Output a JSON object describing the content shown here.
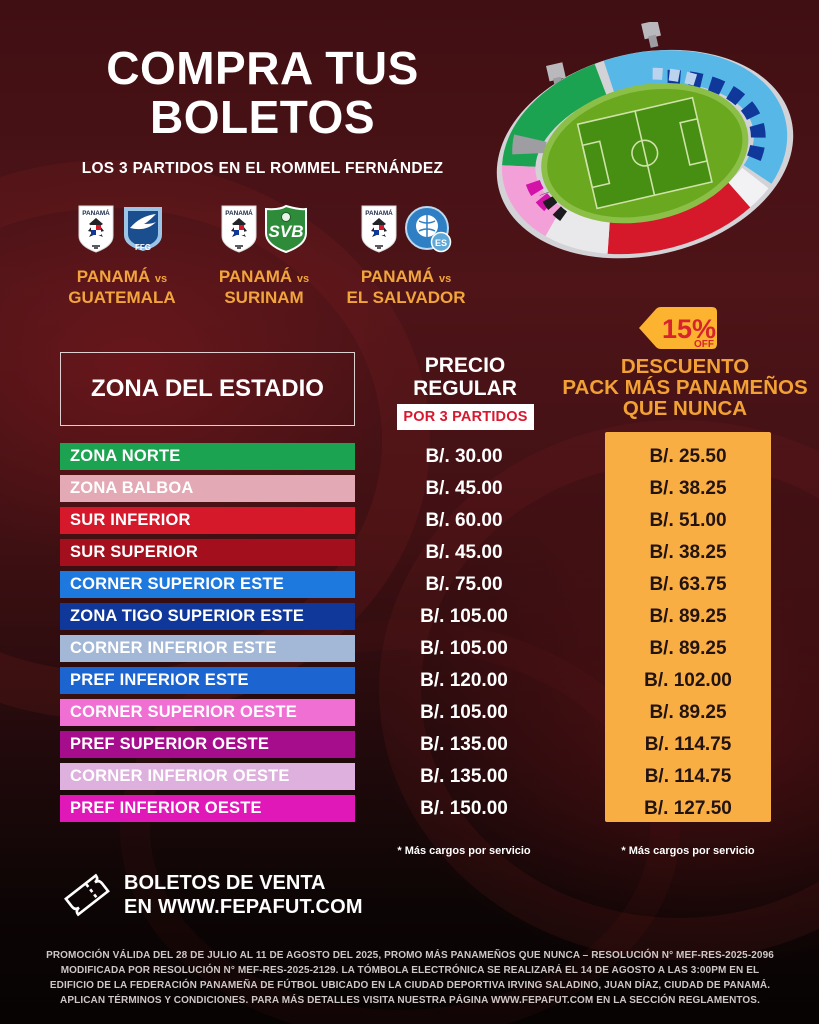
{
  "poster": {
    "title_line1": "COMPRA TUS",
    "title_line2": "BOLETOS",
    "subtitle": "LOS 3 PARTIDOS EN EL ROMMEL FERNÁNDEZ"
  },
  "badges": {
    "panama_label": "PANAMÁ",
    "guatemala_label": "FFG",
    "surinam_label": "SVB",
    "elsalvador_label": "ES"
  },
  "matchups": [
    {
      "home": "PANAMÁ",
      "vs": "vs",
      "away": "GUATEMALA",
      "away_badge": "guatemala"
    },
    {
      "home": "PANAMÁ",
      "vs": "vs",
      "away": "SURINAM",
      "away_badge": "surinam"
    },
    {
      "home": "PANAMÁ",
      "vs": "vs",
      "away": "EL SALVADOR",
      "away_badge": "elsalvador"
    }
  ],
  "discount_badge": {
    "percent": "15%",
    "off": "OFF"
  },
  "table": {
    "zone_header": "ZONA DEL ESTADIO",
    "price_header_line1": "PRECIO",
    "price_header_line2": "REGULAR",
    "price_subheader": "POR 3 PARTIDOS",
    "discount_header_line1": "DESCUENTO",
    "discount_header_line2": "PACK MÁS PANAMEÑOS",
    "discount_header_line3": "QUE NUNCA",
    "price_footnote": "* Más cargos por servicio",
    "discount_footnote": "* Más cargos por servicio",
    "rows": [
      {
        "zone": "ZONA NORTE",
        "price": "B/. 30.00",
        "discount": "B/. 25.50",
        "color": "#1ca351"
      },
      {
        "zone": "ZONA BALBOA",
        "price": "B/. 45.00",
        "discount": "B/. 38.25",
        "color": "#e3a9b4"
      },
      {
        "zone": "SUR INFERIOR",
        "price": "B/. 60.00",
        "discount": "B/. 51.00",
        "color": "#d6182b"
      },
      {
        "zone": "SUR SUPERIOR",
        "price": "B/. 45.00",
        "discount": "B/. 38.25",
        "color": "#a30f1d"
      },
      {
        "zone": "CORNER SUPERIOR ESTE",
        "price": "B/. 75.00",
        "discount": "B/. 63.75",
        "color": "#1e79df"
      },
      {
        "zone": "ZONA TIGO SUPERIOR ESTE",
        "price": "B/. 105.00",
        "discount": "B/. 89.25",
        "color": "#10389b"
      },
      {
        "zone": "CORNER INFERIOR ESTE",
        "price": "B/. 105.00",
        "discount": "B/. 89.25",
        "color": "#a3b7d6"
      },
      {
        "zone": "PREF INFERIOR ESTE",
        "price": "B/. 120.00",
        "discount": "B/. 102.00",
        "color": "#1c64cf"
      },
      {
        "zone": "CORNER SUPERIOR OESTE",
        "price": "B/. 105.00",
        "discount": "B/. 89.25",
        "color": "#f06fd2"
      },
      {
        "zone": "PREF SUPERIOR OESTE",
        "price": "B/. 135.00",
        "discount": "B/. 114.75",
        "color": "#a60d8c"
      },
      {
        "zone": "CORNER INFERIOR OESTE",
        "price": "B/. 135.00",
        "discount": "B/. 114.75",
        "color": "#deb0dd"
      },
      {
        "zone": "PREF INFERIOR OESTE",
        "price": "B/. 150.00",
        "discount": "B/. 127.50",
        "color": "#e018b8"
      }
    ]
  },
  "footer": {
    "sales_line1": "BOLETOS DE VENTA",
    "sales_line2": "EN WWW.FEPAFUT.COM",
    "legal": "PROMOCIÓN VÁLIDA DEL 28 DE JULIO AL 11 DE AGOSTO DEL 2025, PROMO MÁS PANAMEÑOS QUE NUNCA – RESOLUCIÓN N° MEF-RES-2025-2096 MODIFICADA POR RESOLUCIÓN N° MEF-RES-2025-2129. LA TÓMBOLA ELECTRÓNICA SE REALIZARÁ EL 14 DE AGOSTO A LAS 3:00PM EN EL EDIFICIO DE LA FEDERACIÓN PANAMEÑA DE FÚTBOL UBICADO EN LA CIUDAD DEPORTIVA IRVING SALADINO, JUAN DÍAZ, CIUDAD DE PANAMÁ. APLICAN TÉRMINOS Y CONDICIONES. PARA MÁS DETALLES VISITA NUESTRA PÁGINA WWW.FEPAFUT.COM EN LA SECCIÓN REGLAMENTOS."
  },
  "colors": {
    "accent_gold": "#f2a53c",
    "panel_gold": "#f9ae43",
    "accent_red": "#d7182f",
    "background_maroon": "#4e1418"
  }
}
